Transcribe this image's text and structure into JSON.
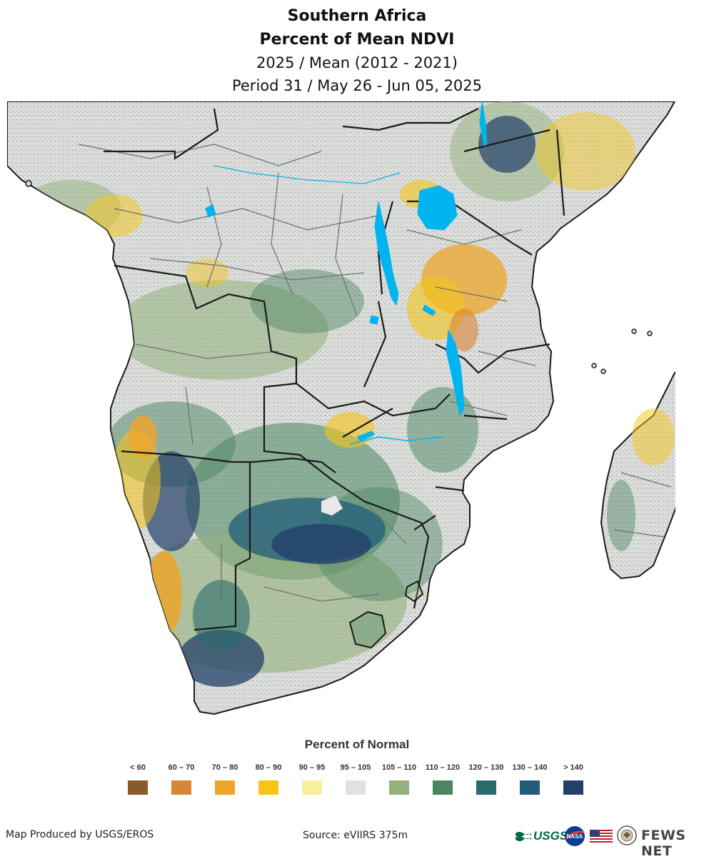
{
  "header": {
    "title": "Southern Africa",
    "subtitle": "Percent of Mean NDVI",
    "comparison": "2025 / Mean (2012 - 2021)",
    "period": "Period 31 / May 26 - Jun 05, 2025"
  },
  "map": {
    "region": "Southern Africa",
    "variable": "Percent of Mean NDVI",
    "water_color": "#00b4f0",
    "border_color": "#1a1a1a",
    "admin_border_color": "#6e6e6e"
  },
  "legend": {
    "title": "Percent of Normal",
    "classes": [
      {
        "label": "< 60",
        "color": "#8b5a2b"
      },
      {
        "label": "60 – 70",
        "color": "#d98536"
      },
      {
        "label": "70 – 80",
        "color": "#eda52b"
      },
      {
        "label": "80 – 90",
        "color": "#f5c518"
      },
      {
        "label": "90 – 95",
        "color": "#f9ef9a"
      },
      {
        "label": "95 – 105",
        "color": "#e1e1e1"
      },
      {
        "label": "105 – 110",
        "color": "#94b07c"
      },
      {
        "label": "110 – 120",
        "color": "#4b8661"
      },
      {
        "label": "120 – 130",
        "color": "#2a6b6b"
      },
      {
        "label": "130 – 140",
        "color": "#225d7a"
      },
      {
        "label": "> 140",
        "color": "#23406a"
      }
    ]
  },
  "footer": {
    "credit": "Map Produced by USGS/EROS",
    "source": "Source: eVIIRS 375m",
    "logos": {
      "usgs": "USGS",
      "nasa": "nasa-logo",
      "flag": "us-flag",
      "seal": "state-department-seal",
      "fewsnet": "FEWS NET"
    }
  }
}
